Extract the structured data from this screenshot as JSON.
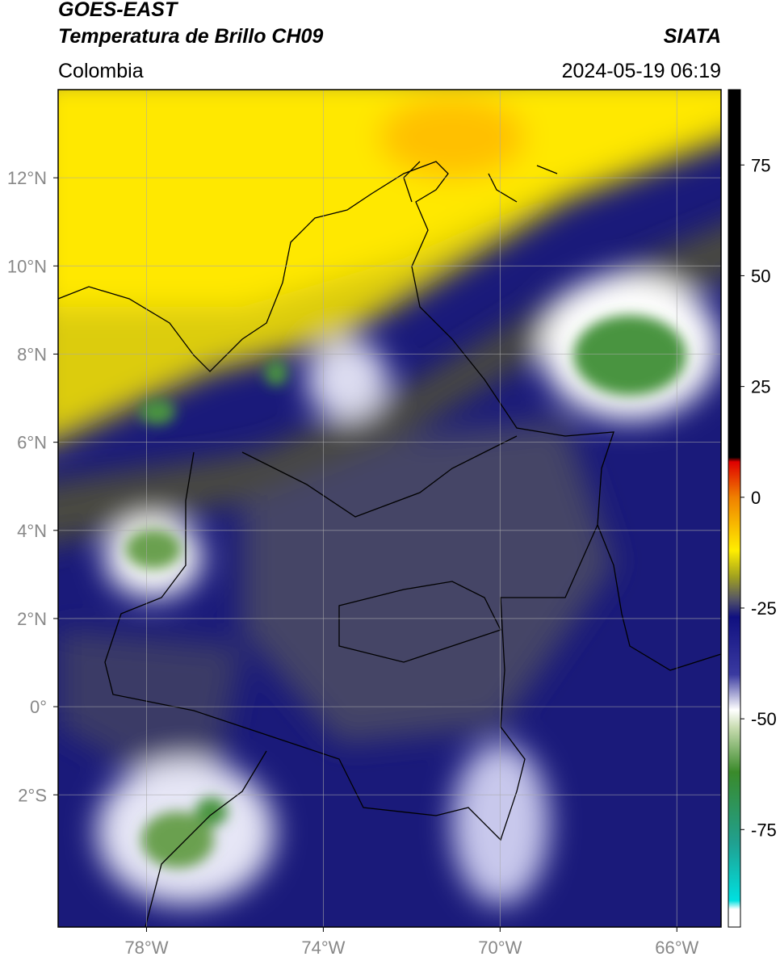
{
  "chart_data": {
    "type": "map",
    "title": "GOES-EAST",
    "subtitle": "Temperatura de Brillo CH09",
    "source": "SIATA",
    "region": "Colombia",
    "timestamp": "2024-05-19 06:19",
    "xlim": [
      -80,
      -65
    ],
    "ylim": [
      -5,
      14
    ],
    "xticks": [
      {
        "value": -78,
        "label": "78°W"
      },
      {
        "value": -74,
        "label": "74°W"
      },
      {
        "value": -70,
        "label": "70°W"
      },
      {
        "value": -66,
        "label": "66°W"
      }
    ],
    "yticks": [
      {
        "value": 12,
        "label": "12°N"
      },
      {
        "value": 10,
        "label": "10°N"
      },
      {
        "value": 8,
        "label": "8°N"
      },
      {
        "value": 6,
        "label": "6°N"
      },
      {
        "value": 4,
        "label": "4°N"
      },
      {
        "value": 2,
        "label": "2°N"
      },
      {
        "value": 0,
        "label": "0°"
      },
      {
        "value": -2,
        "label": "2°S"
      }
    ],
    "grid": true,
    "colorbar": {
      "clim": [
        -97,
        92
      ],
      "ticks": [
        75,
        50,
        25,
        0,
        -25,
        -50,
        -75
      ],
      "colorscale": [
        {
          "value": 92,
          "color": "#000000"
        },
        {
          "value": 9,
          "color": "#000000"
        },
        {
          "value": 8,
          "color": "#e00000"
        },
        {
          "value": 0,
          "color": "#f08000"
        },
        {
          "value": -12,
          "color": "#ffee00"
        },
        {
          "value": -18,
          "color": "#a0a020"
        },
        {
          "value": -23,
          "color": "#555566"
        },
        {
          "value": -27,
          "color": "#101080"
        },
        {
          "value": -40,
          "color": "#3a3aa0"
        },
        {
          "value": -48,
          "color": "#ffffff"
        },
        {
          "value": -52,
          "color": "#c8dcb0"
        },
        {
          "value": -62,
          "color": "#3a8a2a"
        },
        {
          "value": -78,
          "color": "#20a090"
        },
        {
          "value": -91,
          "color": "#00e0e0"
        },
        {
          "value": -93,
          "color": "#ffffff"
        },
        {
          "value": -97,
          "color": "#ffffff"
        }
      ]
    }
  }
}
